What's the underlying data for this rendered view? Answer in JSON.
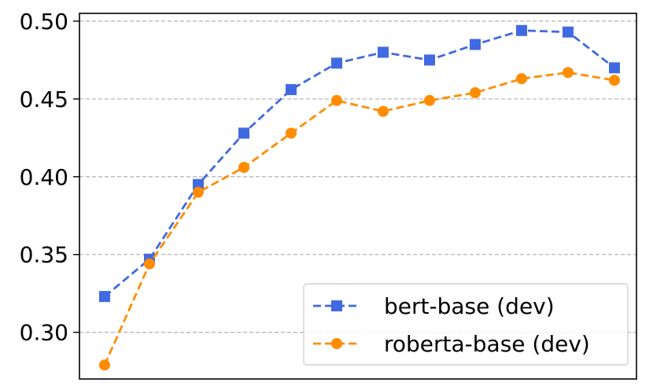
{
  "chart_data": {
    "type": "line",
    "title": "",
    "xlabel": "",
    "ylabel": "",
    "x": [
      1,
      2,
      3,
      4,
      5,
      6,
      7,
      8,
      9,
      10,
      11,
      12
    ],
    "ylim": [
      0.27,
      0.505
    ],
    "yticks": [
      "0.30",
      "0.35",
      "0.40",
      "0.45",
      "0.50"
    ],
    "grid": "y-dashed",
    "legend": "bottom-right",
    "series": [
      {
        "name": "bert-base (dev)",
        "color": "#4169e1",
        "marker": "square",
        "linestyle": "dashed",
        "values": [
          0.323,
          0.347,
          0.395,
          0.428,
          0.456,
          0.473,
          0.48,
          0.475,
          0.485,
          0.494,
          0.493,
          0.47
        ]
      },
      {
        "name": "roberta-base (dev)",
        "color": "#ff8c00",
        "marker": "circle",
        "linestyle": "dashed",
        "values": [
          0.279,
          0.344,
          0.39,
          0.406,
          0.428,
          0.449,
          0.442,
          0.449,
          0.454,
          0.463,
          0.467,
          0.462
        ]
      }
    ]
  }
}
